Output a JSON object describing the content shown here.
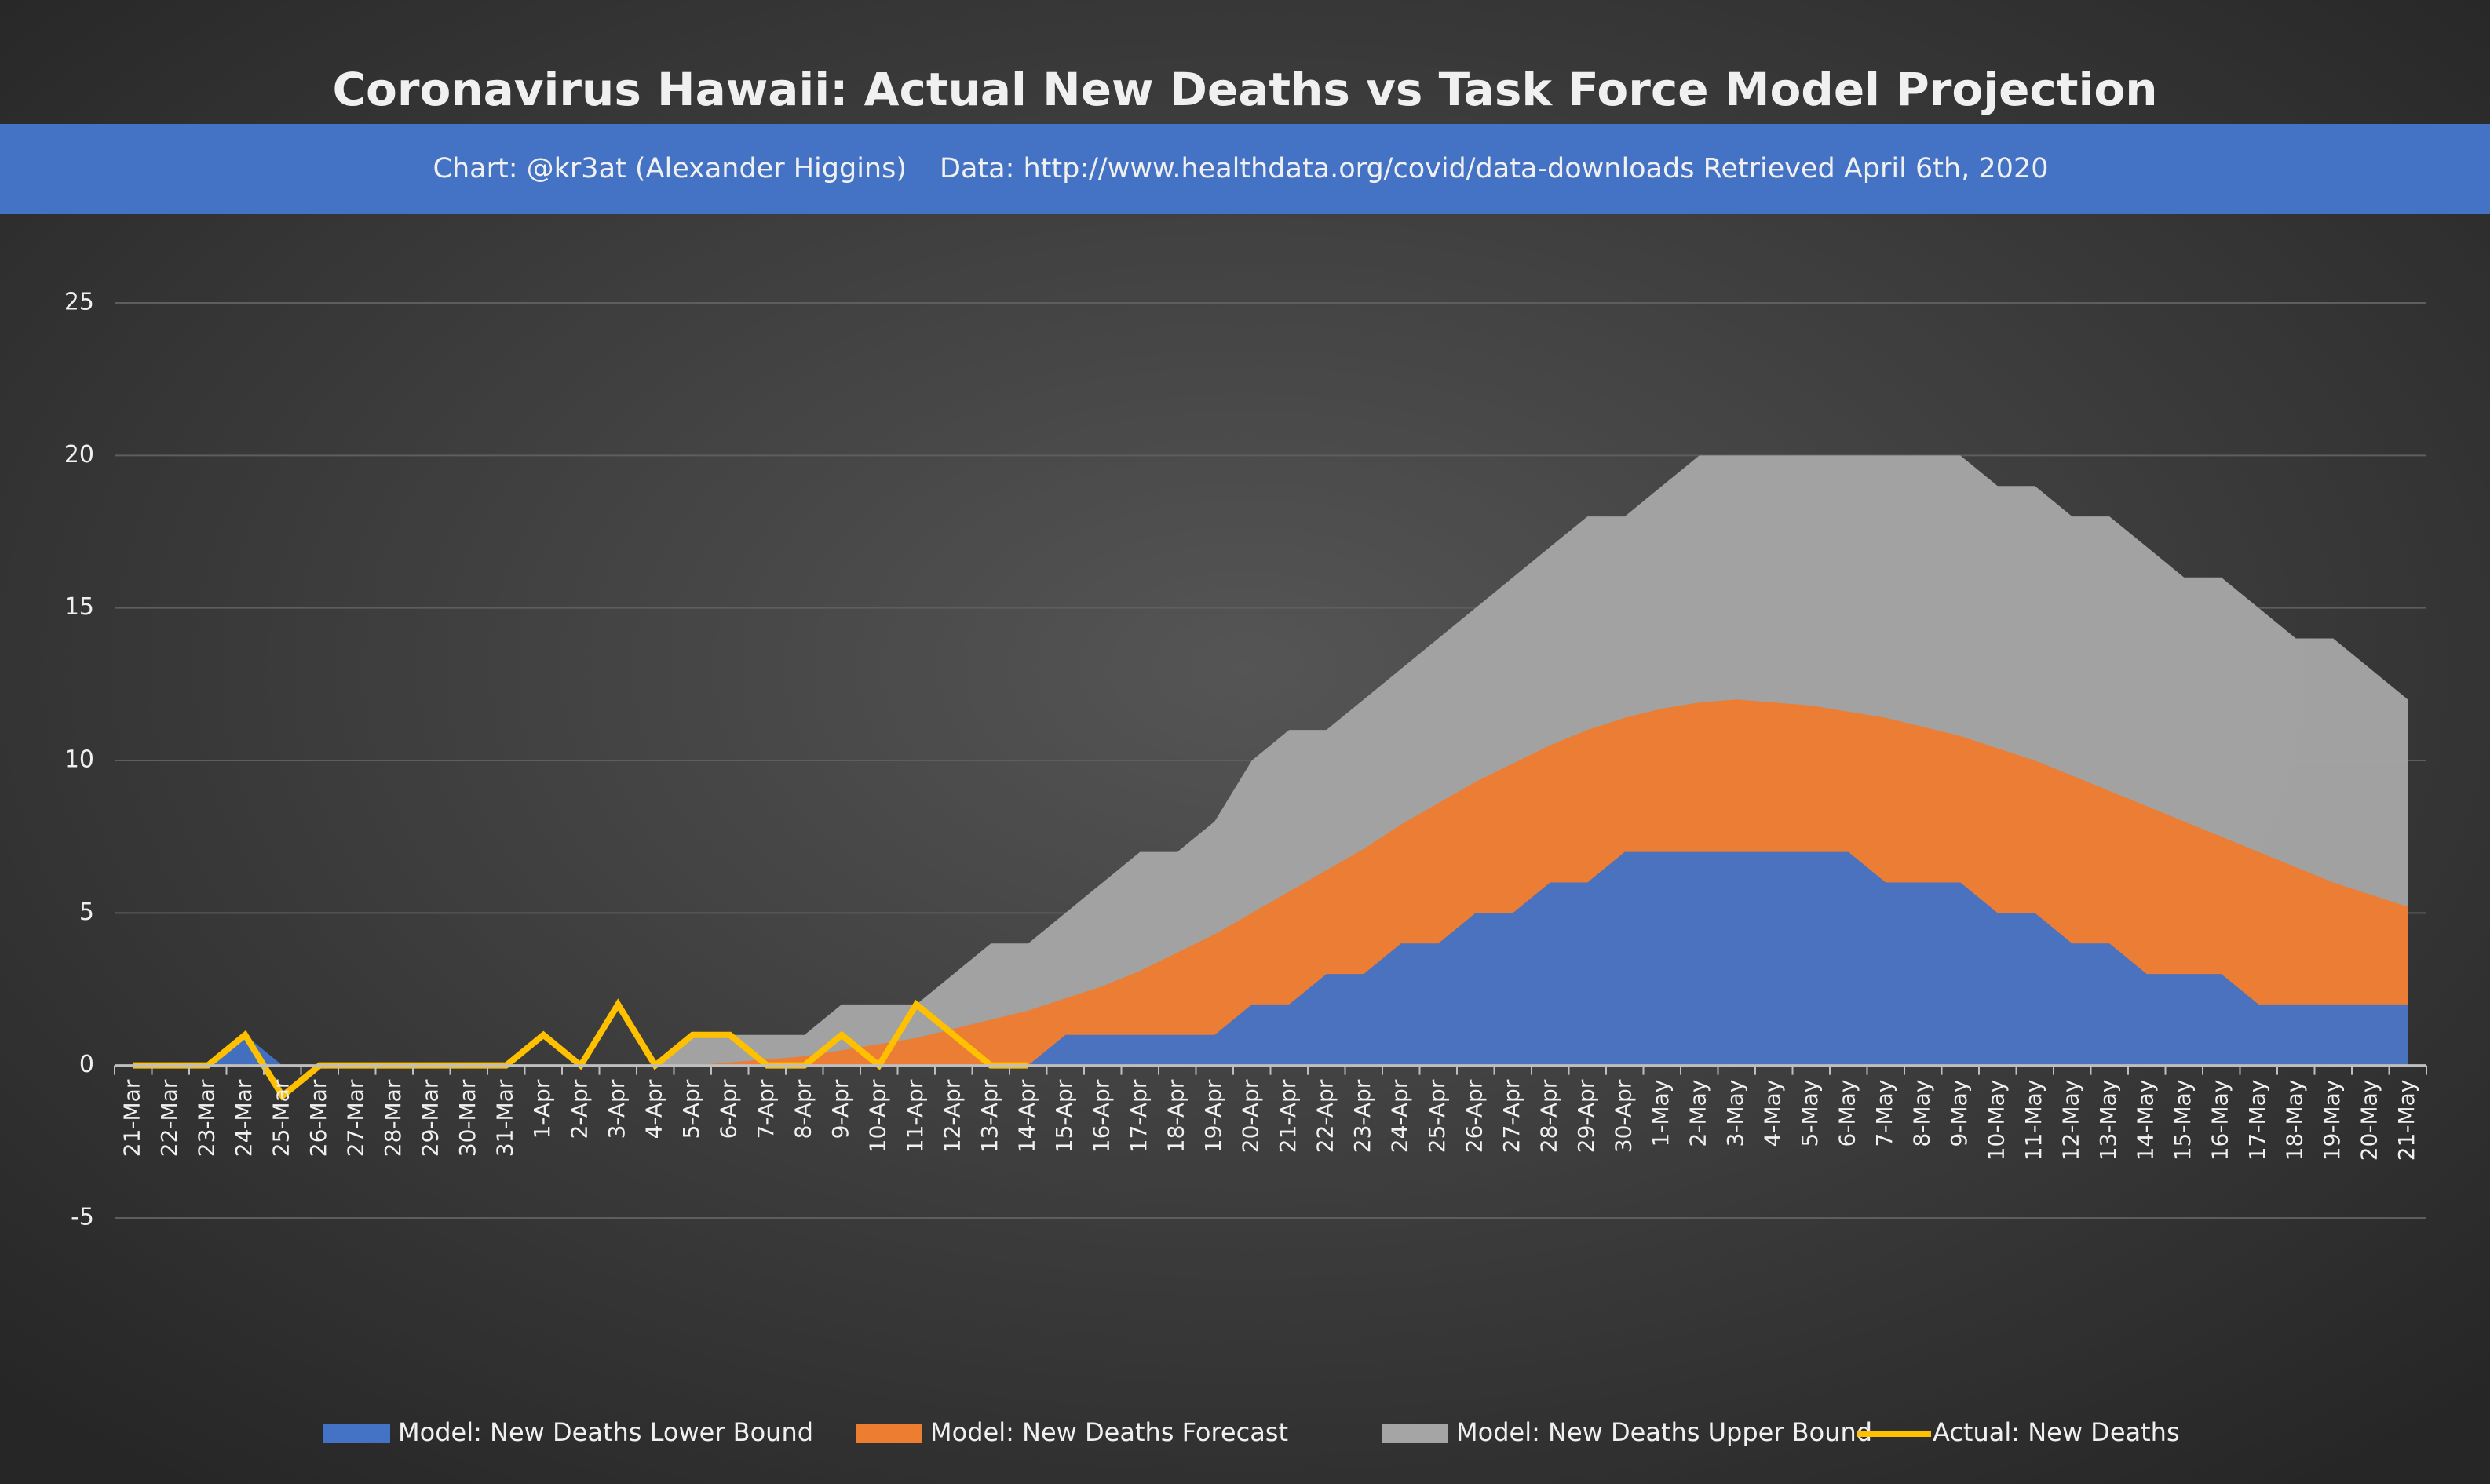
{
  "chart_data": {
    "type": "area",
    "title": "Coronavirus Hawaii: Actual New Deaths vs Task Force Model Projection",
    "subtitle": "Chart: @kr3at (Alexander Higgins)",
    "source": "Data: http://www.healthdata.org/covid/data-downloads Retrieved April 6th, 2020",
    "categories": [
      "21-Mar",
      "22-Mar",
      "23-Mar",
      "24-Mar",
      "25-Mar",
      "26-Mar",
      "27-Mar",
      "28-Mar",
      "29-Mar",
      "30-Mar",
      "31-Mar",
      "1-Apr",
      "2-Apr",
      "3-Apr",
      "4-Apr",
      "5-Apr",
      "6-Apr",
      "7-Apr",
      "8-Apr",
      "9-Apr",
      "10-Apr",
      "11-Apr",
      "12-Apr",
      "13-Apr",
      "14-Apr",
      "15-Apr",
      "16-Apr",
      "17-Apr",
      "18-Apr",
      "19-Apr",
      "20-Apr",
      "21-Apr",
      "22-Apr",
      "23-Apr",
      "24-Apr",
      "25-Apr",
      "26-Apr",
      "27-Apr",
      "28-Apr",
      "29-Apr",
      "30-Apr",
      "1-May",
      "2-May",
      "3-May",
      "4-May",
      "5-May",
      "6-May",
      "7-May",
      "8-May",
      "9-May",
      "10-May",
      "11-May",
      "12-May",
      "13-May",
      "14-May",
      "15-May",
      "16-May",
      "17-May",
      "18-May",
      "19-May",
      "20-May",
      "21-May"
    ],
    "series": [
      {
        "name": "Model: New Deaths Upper Bound",
        "color": "#a5a5a5",
        "kind": "area",
        "values": [
          0,
          0,
          0,
          0,
          0,
          0,
          0,
          0,
          0,
          0,
          0,
          0,
          0,
          0,
          0,
          1,
          1,
          1,
          1,
          2,
          2,
          2,
          3,
          4,
          4,
          5,
          6,
          7,
          7,
          8,
          10,
          11,
          11,
          12,
          13,
          14,
          15,
          16,
          17,
          18,
          18,
          19,
          20,
          20,
          20,
          20,
          20,
          20,
          20,
          20,
          19,
          19,
          18,
          18,
          17,
          16,
          16,
          15,
          14,
          14,
          13,
          12
        ]
      },
      {
        "name": "Model: New Deaths Forecast",
        "color": "#ed7d31",
        "kind": "area",
        "values": [
          0,
          0,
          0,
          0,
          0,
          0,
          0,
          0,
          0,
          0,
          0,
          0,
          0,
          0,
          0,
          0,
          0.1,
          0.2,
          0.3,
          0.5,
          0.7,
          0.9,
          1.2,
          1.5,
          1.8,
          2.2,
          2.6,
          3.1,
          3.7,
          4.3,
          5,
          5.7,
          6.4,
          7.1,
          7.9,
          8.6,
          9.3,
          9.9,
          10.5,
          11,
          11.4,
          11.7,
          11.9,
          12,
          11.9,
          11.8,
          11.6,
          11.4,
          11.1,
          10.8,
          10.4,
          10,
          9.5,
          9,
          8.5,
          8,
          7.5,
          7,
          6.5,
          6,
          5.6,
          5.2
        ]
      },
      {
        "name": "Model: New Deaths Lower Bound",
        "color": "#4472c4",
        "kind": "area",
        "values": [
          0,
          0,
          0,
          1,
          0,
          0,
          0,
          0,
          0,
          0,
          0,
          0,
          0,
          0,
          0,
          0,
          0,
          0,
          0,
          0,
          0,
          0,
          0,
          0,
          0,
          1,
          1,
          1,
          1,
          1,
          2,
          2,
          3,
          3,
          4,
          4,
          5,
          5,
          6,
          6,
          7,
          7,
          7,
          7,
          7,
          7,
          7,
          6,
          6,
          6,
          5,
          5,
          4,
          4,
          3,
          3,
          3,
          2,
          2,
          2,
          2,
          2
        ]
      },
      {
        "name": "Actual: New Deaths",
        "color": "#ffc000",
        "kind": "line",
        "values": [
          0,
          0,
          0,
          1,
          -1,
          0,
          0,
          0,
          0,
          0,
          0,
          1,
          0,
          2,
          0,
          1,
          1,
          0,
          0,
          1,
          0,
          2,
          1,
          0,
          0,
          null,
          null,
          null,
          null,
          null,
          null,
          null,
          null,
          null,
          null,
          null,
          null,
          null,
          null,
          null,
          null,
          null,
          null,
          null,
          null,
          null,
          null,
          null,
          null,
          null,
          null,
          null,
          null,
          null,
          null,
          null,
          null,
          null,
          null,
          null,
          null,
          null
        ]
      }
    ],
    "legend_order": [
      2,
      1,
      0,
      3
    ],
    "ylim": [
      -5,
      25
    ],
    "yticks": [
      -5,
      0,
      5,
      10,
      15,
      20,
      25
    ],
    "grid": true
  }
}
